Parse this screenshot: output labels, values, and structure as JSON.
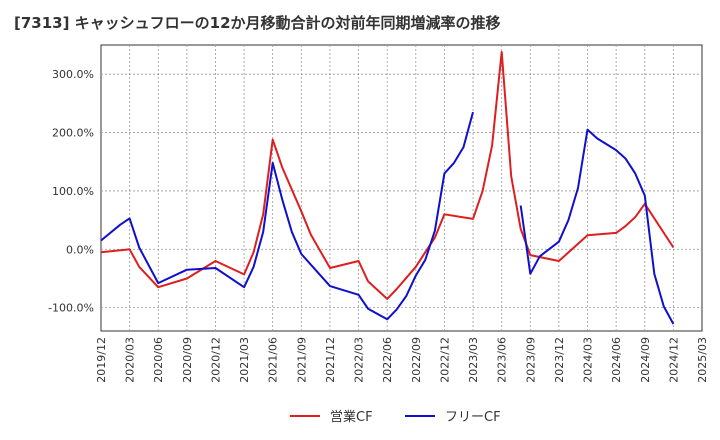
{
  "chart_data": {
    "type": "line",
    "title": "[7313]  キャッシュフローの12か月移動合計の対前年同期増減率の推移",
    "xlabel": "",
    "ylabel": "",
    "ylim": [
      -140,
      350
    ],
    "y_ticks": [
      300,
      200,
      100,
      0,
      -100
    ],
    "y_tick_labels": [
      "300.0%",
      "200.0%",
      "100.0%",
      "0.0%",
      "-100.0%"
    ],
    "x_tick_labels": [
      "2019/12",
      "2020/03",
      "2020/06",
      "2020/09",
      "2020/12",
      "2021/03",
      "2021/06",
      "2021/09",
      "2021/12",
      "2022/03",
      "2022/06",
      "2022/09",
      "2022/12",
      "2023/03",
      "2023/06",
      "2023/09",
      "2023/12",
      "2024/03",
      "2024/06",
      "2024/09",
      "2024/12",
      "2025/03"
    ],
    "grid": true,
    "legend_position": "bottom",
    "series": [
      {
        "name": "営業CF",
        "color": "#dd1f1f",
        "points": [
          [
            "2019/12",
            -5
          ],
          [
            "2020/03",
            0
          ],
          [
            "2020/04",
            -30
          ],
          [
            "2020/06",
            -65
          ],
          [
            "2020/09",
            -50
          ],
          [
            "2020/12",
            -20
          ],
          [
            "2021/03",
            -43
          ],
          [
            "2021/04",
            -5
          ],
          [
            "2021/05",
            60
          ],
          [
            "2021/06",
            188
          ],
          [
            "2021/07",
            140
          ],
          [
            "2021/09",
            65
          ],
          [
            "2021/10",
            25
          ],
          [
            "2021/12",
            -32
          ],
          [
            "2022/03",
            -20
          ],
          [
            "2022/04",
            -55
          ],
          [
            "2022/06",
            -85
          ],
          [
            "2022/07",
            -68
          ],
          [
            "2022/09",
            -30
          ],
          [
            "2022/10",
            -5
          ],
          [
            "2022/11",
            20
          ],
          [
            "2022/12",
            60
          ],
          [
            "2023/03",
            52
          ],
          [
            "2023/04",
            100
          ],
          [
            "2023/05",
            178
          ],
          [
            "2023/06",
            338
          ],
          [
            "2023/07",
            125
          ],
          [
            "2023/08",
            35
          ],
          [
            "2023/09",
            -10
          ],
          [
            "2023/12",
            -20
          ],
          [
            "2024/03",
            24
          ],
          [
            "2024/06",
            28
          ],
          [
            "2024/07",
            40
          ],
          [
            "2024/08",
            55
          ],
          [
            "2024/09",
            78
          ],
          [
            "2024/12",
            3
          ]
        ]
      },
      {
        "name": "フリーCF",
        "color": "#1010cc",
        "points": [
          [
            "2019/12",
            15
          ],
          [
            "2020/02",
            42
          ],
          [
            "2020/03",
            53
          ],
          [
            "2020/04",
            3
          ],
          [
            "2020/06",
            -58
          ],
          [
            "2020/09",
            -35
          ],
          [
            "2020/12",
            -32
          ],
          [
            "2021/03",
            -65
          ],
          [
            "2021/04",
            -30
          ],
          [
            "2021/05",
            30
          ],
          [
            "2021/06",
            148
          ],
          [
            "2021/07",
            85
          ],
          [
            "2021/08",
            30
          ],
          [
            "2021/09",
            -8
          ],
          [
            "2021/12",
            -63
          ],
          [
            "2022/03",
            -78
          ],
          [
            "2022/04",
            -102
          ],
          [
            "2022/06",
            -120
          ],
          [
            "2022/07",
            -103
          ],
          [
            "2022/08",
            -80
          ],
          [
            "2022/09",
            -45
          ],
          [
            "2022/10",
            -18
          ],
          [
            "2022/11",
            32
          ],
          [
            "2022/12",
            130
          ],
          [
            "2023/01",
            148
          ],
          [
            "2023/02",
            175
          ],
          [
            "2023/03",
            235
          ],
          null,
          [
            "2023/08",
            75
          ],
          [
            "2023/09",
            -42
          ],
          [
            "2023/10",
            -12
          ],
          [
            "2023/12",
            13
          ],
          [
            "2024/01",
            50
          ],
          [
            "2024/02",
            105
          ],
          [
            "2024/03",
            205
          ],
          [
            "2024/04",
            190
          ],
          [
            "2024/06",
            170
          ],
          [
            "2024/07",
            155
          ],
          [
            "2024/08",
            130
          ],
          [
            "2024/09",
            92
          ],
          [
            "2024/10",
            -42
          ],
          [
            "2024/11",
            -98
          ],
          [
            "2024/12",
            -128
          ]
        ]
      }
    ]
  }
}
